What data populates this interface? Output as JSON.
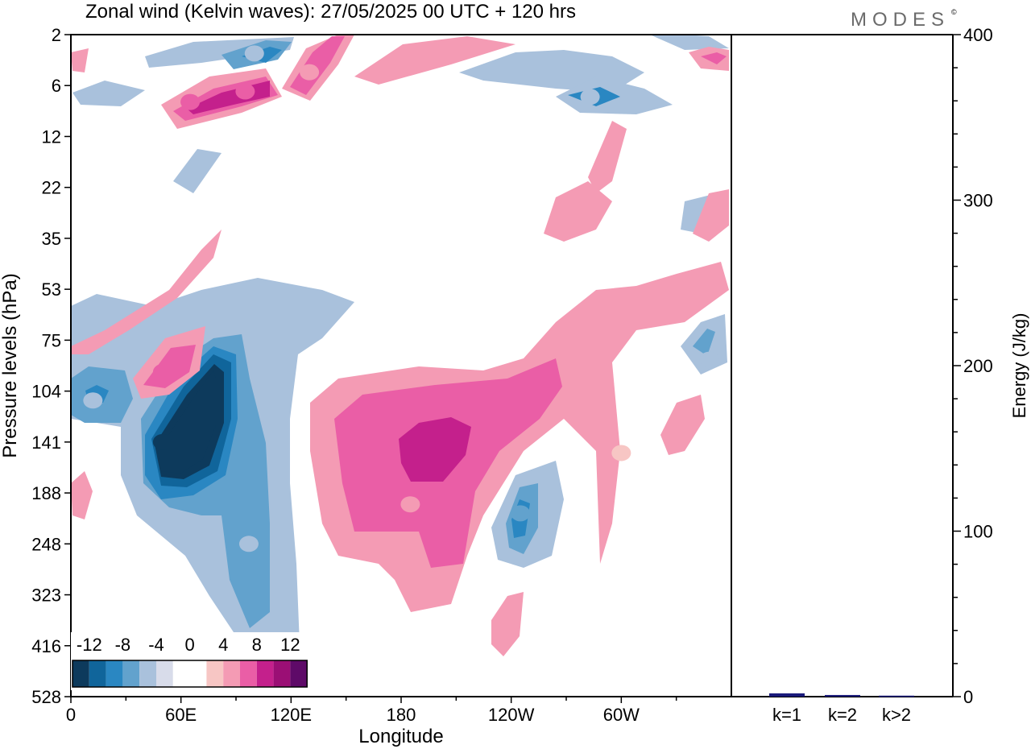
{
  "title": "Zonal wind (Kelvin waves):  27/05/2025  00 UTC  + 120 hrs",
  "logo": "MODES",
  "logo_mark": "©",
  "chart_data": [
    {
      "type": "heatmap",
      "title": "Zonal wind (Kelvin waves):  27/05/2025  00 UTC  + 120 hrs",
      "xlabel": "Longitude",
      "ylabel": "Pressure levels (hPa)",
      "x_range_deg": [
        0,
        360
      ],
      "x_ticks": [
        {
          "deg": 0,
          "label": "0"
        },
        {
          "deg": 60,
          "label": "60E"
        },
        {
          "deg": 120,
          "label": "120E"
        },
        {
          "deg": 180,
          "label": "180"
        },
        {
          "deg": 240,
          "label": "120W"
        },
        {
          "deg": 300,
          "label": "60W"
        }
      ],
      "y_levels_hpa": [
        2,
        6,
        12,
        22,
        35,
        53,
        75,
        104,
        141,
        188,
        248,
        323,
        416,
        528
      ],
      "y_tick_labels": [
        "2",
        "6",
        "12",
        "22",
        "35",
        "53",
        "75",
        "104",
        "141",
        "188",
        "248",
        "323",
        "416",
        "528"
      ],
      "colorbar": {
        "labels": [
          "-12",
          "-8",
          "-4",
          "0",
          "4",
          "8",
          "12"
        ],
        "colors": [
          "#0d3a5c",
          "#10659b",
          "#2a87c2",
          "#62a2cd",
          "#a9c1dc",
          "#d8dcea",
          "#ffffff",
          "#ffffff",
          "#f7c6c4",
          "#f49bb4",
          "#ea5ea6",
          "#c4208c",
          "#9b0f75",
          "#5e0a68"
        ]
      },
      "features": [
        {
          "lon": 50,
          "hpa": 141,
          "value": -13
        },
        {
          "lon": 97,
          "hpa": 248,
          "value": -6
        },
        {
          "lon": 122,
          "hpa": 410,
          "value": -3
        },
        {
          "lon": 12,
          "hpa": 110,
          "value": -6
        },
        {
          "lon": 245,
          "hpa": 210,
          "value": -7
        },
        {
          "lon": 348,
          "hpa": 85,
          "value": -5
        },
        {
          "lon": 200,
          "hpa": 141,
          "value": 9
        },
        {
          "lon": 185,
          "hpa": 200,
          "value": 5
        },
        {
          "lon": 50,
          "hpa": 92,
          "value": 7
        },
        {
          "lon": 95,
          "hpa": 6.5,
          "value": 8
        },
        {
          "lon": 65,
          "hpa": 7.5,
          "value": 7
        },
        {
          "lon": 130,
          "hpa": 4.5,
          "value": 6
        },
        {
          "lon": 300,
          "hpa": 150,
          "value": 3
        },
        {
          "lon": 100,
          "hpa": 3,
          "value": -6
        },
        {
          "lon": 283,
          "hpa": 7,
          "value": -5
        }
      ]
    },
    {
      "type": "bar",
      "categories": [
        "k=1",
        "k=2",
        "k>2"
      ],
      "values": [
        2.0,
        1.0,
        0.6
      ],
      "colors": [
        "#1a1a7a",
        "#1a1a7a",
        "#1a1a7a"
      ],
      "ylabel": "Energy (J/kg)",
      "ylim": [
        0,
        400
      ],
      "y_ticks": [
        "0",
        "100",
        "200",
        "300",
        "400"
      ]
    }
  ]
}
